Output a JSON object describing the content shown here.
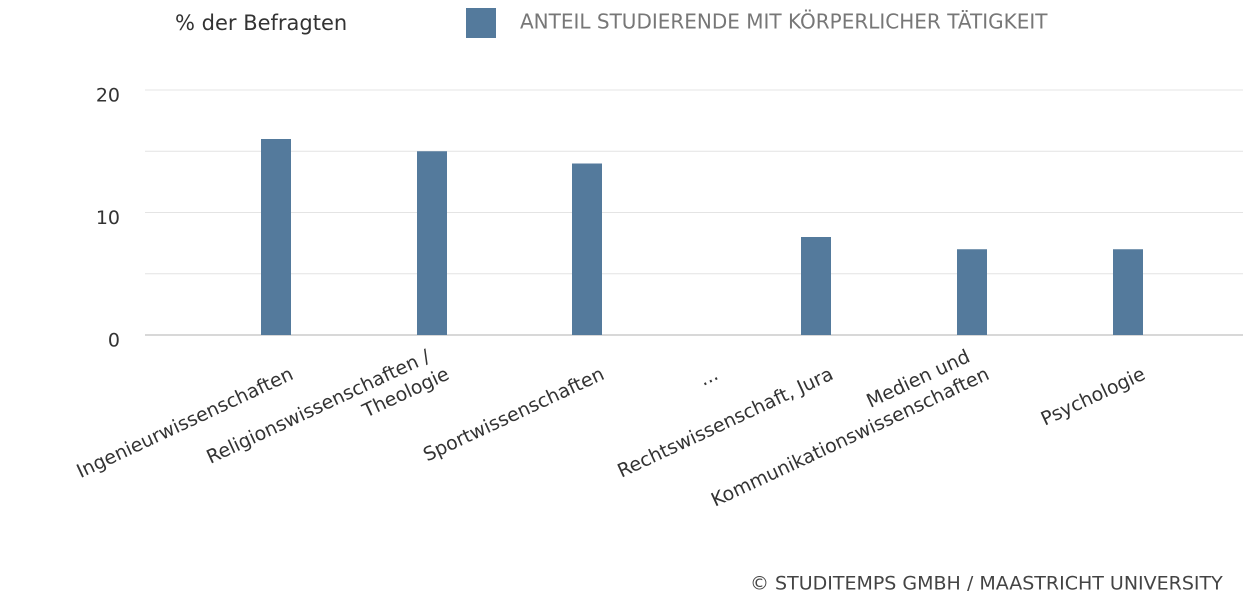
{
  "chart_data": {
    "type": "bar",
    "y_label": "% der Befragten",
    "series": [
      {
        "name": "ANTEIL STUDIERENDE MIT KÖRPERLICHER TÄTIGKEIT",
        "color": "#547a9c",
        "values": [
          16,
          15,
          14,
          null,
          8,
          7,
          7
        ]
      }
    ],
    "categories": [
      "Ingenieurwissenschaften",
      "Religionswissenschaften /\nTheologie",
      "Sportwissenschaften",
      "...",
      "Rechtswissenschaft, Jura",
      "Medien und\nKommunikationswissenschaften",
      "Psychologie"
    ],
    "ylim": [
      0,
      20
    ],
    "yticks": [
      0,
      10,
      20
    ],
    "grid": true,
    "credit": "© STUDITEMPS GMBH / MAASTRICHT UNIVERSITY"
  }
}
